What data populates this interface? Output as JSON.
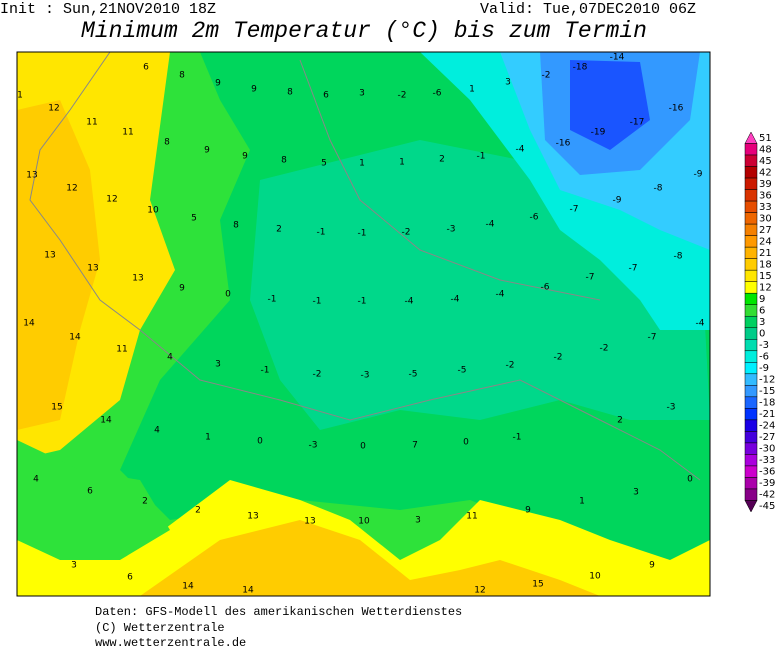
{
  "header": {
    "init": "Init : Sun,21NOV2010 18Z",
    "valid": "Valid: Tue,07DEC2010 06Z",
    "title": "Minimum 2m Temperatur (°C) bis zum Termin"
  },
  "map_labels": [
    6,
    8,
    9,
    9,
    8,
    6,
    3,
    -2,
    -6,
    1,
    3,
    -2,
    -18,
    -14,
    1,
    12,
    11,
    11,
    8,
    9,
    9,
    8,
    5,
    1,
    1,
    2,
    -1,
    -4,
    -16,
    -19,
    -17,
    -16,
    13,
    12,
    12,
    10,
    5,
    8,
    2,
    -1,
    -1,
    -2,
    -3,
    -4,
    -6,
    -7,
    -9,
    -8,
    -9,
    13,
    13,
    13,
    9,
    0,
    -1,
    -1,
    -1,
    -4,
    -4,
    -4,
    -6,
    -7,
    -7,
    -8,
    14,
    14,
    11,
    4,
    3,
    -1,
    -2,
    -3,
    -5,
    -5,
    -2,
    -2,
    -2,
    -7,
    -4,
    15,
    14,
    4,
    1,
    0,
    -3,
    0,
    7,
    0,
    -1,
    2,
    -3,
    4,
    6,
    2,
    2,
    13,
    13,
    10,
    3,
    11,
    9,
    1,
    3,
    0,
    3,
    6,
    14,
    14,
    15,
    10,
    9,
    12
  ],
  "legend": {
    "levels": [
      51,
      48,
      45,
      42,
      39,
      36,
      33,
      30,
      27,
      24,
      21,
      18,
      15,
      12,
      9,
      6,
      3,
      0,
      -3,
      -6,
      -9,
      -12,
      -15,
      -18,
      -21,
      -24,
      -27,
      -30,
      -33,
      -36,
      -39,
      -42,
      -45
    ],
    "colors": [
      "#ff40c0",
      "#e6007a",
      "#cc0033",
      "#b30000",
      "#cc1a00",
      "#d93300",
      "#e64d00",
      "#ee6600",
      "#f58000",
      "#ff9900",
      "#ffb300",
      "#ffcc00",
      "#ffe600",
      "#ffff00",
      "#00e600",
      "#33dd33",
      "#00d060",
      "#00cc88",
      "#00ddb0",
      "#00eedd",
      "#00f0ff",
      "#33bbff",
      "#3399ff",
      "#1a66ff",
      "#0033ff",
      "#1a00e6",
      "#4400dd",
      "#7700dd",
      "#aa00dd",
      "#cc00cc",
      "#aa00aa",
      "#880088",
      "#550055"
    ]
  },
  "footer": [
    "Daten: GFS-Modell des amerikanischen Wetterdienstes",
    "(C) Wetterzentrale",
    "www.wetterzentrale.de"
  ]
}
